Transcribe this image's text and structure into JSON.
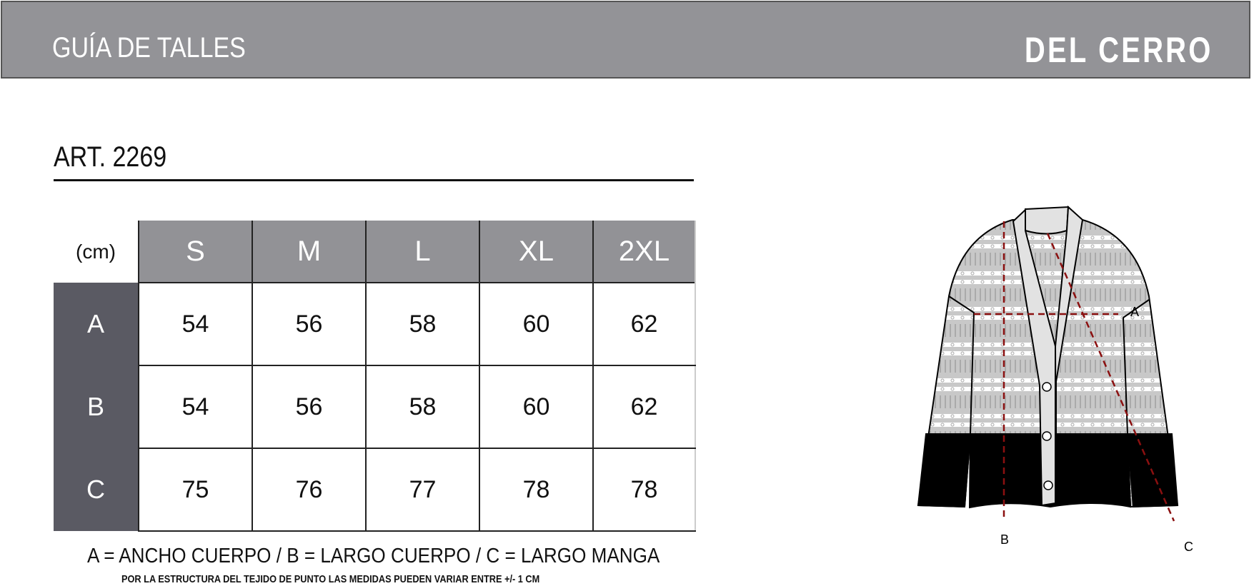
{
  "header": {
    "title": "GUÍA DE TALLES",
    "brand": "DEL CERRO"
  },
  "article": "ART. 2269",
  "table": {
    "unit": "(cm)",
    "sizes": [
      "S",
      "M",
      "L",
      "XL",
      "2XL"
    ],
    "rows": [
      {
        "label": "A",
        "values": [
          "54",
          "56",
          "58",
          "60",
          "62"
        ]
      },
      {
        "label": "B",
        "values": [
          "54",
          "56",
          "58",
          "60",
          "62"
        ]
      },
      {
        "label": "C",
        "values": [
          "75",
          "76",
          "77",
          "78",
          "78"
        ]
      }
    ]
  },
  "legend": "A = ANCHO CUERPO / B = LARGO CUERPO / C = LARGO MANGA",
  "note": "POR LA ESTRUCTURA DEL TEJIDO DE PUNTO  LAS MEDIDAS PUEDEN VARIAR ENTRE  +/- 1 CM",
  "diagram": {
    "labels": {
      "a": "A",
      "b": "B",
      "c": "C"
    },
    "measure_color": "#8b1010"
  }
}
